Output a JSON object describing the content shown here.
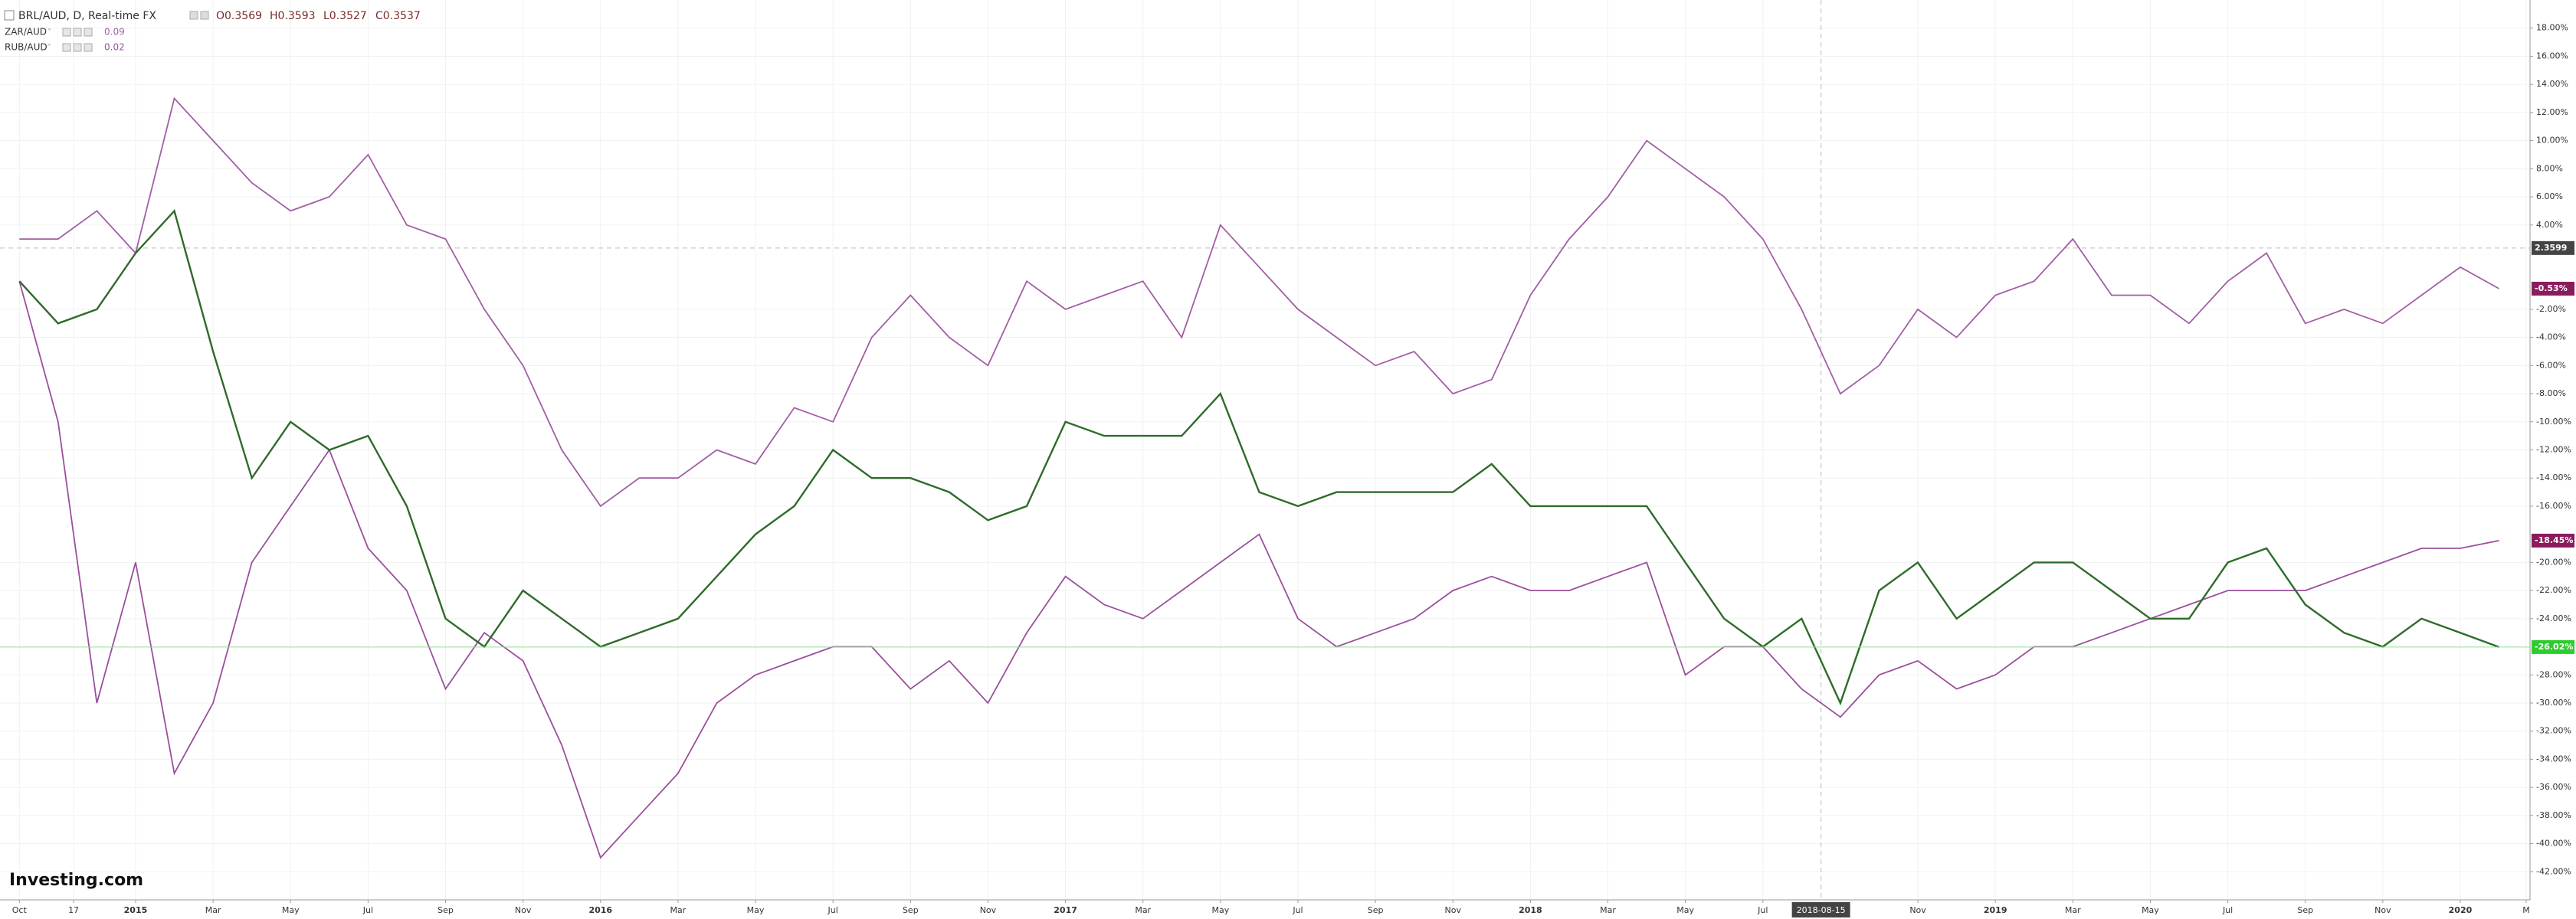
{
  "chart_data": {
    "type": "line",
    "header": {
      "symbol": "BRL/AUD, D, Real-time FX",
      "open": "O0.3569",
      "high": "H0.3593",
      "low": "L0.3527",
      "close": "C0.3537"
    },
    "logo": "Investing.com",
    "x": [
      -3,
      -2,
      -1,
      0,
      1,
      2,
      3,
      4,
      5,
      6,
      7,
      8,
      9,
      10,
      11,
      12,
      13,
      14,
      15,
      16,
      17,
      18,
      19,
      20,
      21,
      22,
      23,
      24,
      25,
      26,
      27,
      28,
      29,
      30,
      31,
      32,
      33,
      34,
      35,
      36,
      37,
      38,
      39,
      40,
      41,
      42,
      43,
      44,
      45,
      46,
      47,
      48,
      49,
      50,
      51,
      52,
      53,
      54,
      55,
      56,
      57,
      58,
      59,
      60,
      61
    ],
    "xlim": [
      -3.5,
      61.8
    ],
    "xticks": [
      {
        "value": -3,
        "label": "Oct"
      },
      {
        "value": -1.6,
        "label": "17"
      },
      {
        "value": 0,
        "label": "2015"
      },
      {
        "value": 2,
        "label": "Mar"
      },
      {
        "value": 4,
        "label": "May"
      },
      {
        "value": 6,
        "label": "Jul"
      },
      {
        "value": 8,
        "label": "Sep"
      },
      {
        "value": 10,
        "label": "Nov"
      },
      {
        "value": 12,
        "label": "2016"
      },
      {
        "value": 14,
        "label": "Mar"
      },
      {
        "value": 16,
        "label": "May"
      },
      {
        "value": 18,
        "label": "Jul"
      },
      {
        "value": 20,
        "label": "Sep"
      },
      {
        "value": 22,
        "label": "Nov"
      },
      {
        "value": 24,
        "label": "2017"
      },
      {
        "value": 26,
        "label": "Mar"
      },
      {
        "value": 28,
        "label": "May"
      },
      {
        "value": 30,
        "label": "Jul"
      },
      {
        "value": 32,
        "label": "Sep"
      },
      {
        "value": 34,
        "label": "Nov"
      },
      {
        "value": 36,
        "label": "2018"
      },
      {
        "value": 38,
        "label": "Mar"
      },
      {
        "value": 40,
        "label": "May"
      },
      {
        "value": 42,
        "label": "Jul"
      },
      {
        "value": 46,
        "label": "Nov"
      },
      {
        "value": 48,
        "label": "2019"
      },
      {
        "value": 50,
        "label": "Mar"
      },
      {
        "value": 52,
        "label": "May"
      },
      {
        "value": 54,
        "label": "Jul"
      },
      {
        "value": 56,
        "label": "Sep"
      },
      {
        "value": 58,
        "label": "Nov"
      },
      {
        "value": 60,
        "label": "2020"
      },
      {
        "value": 61.7,
        "label": "M"
      }
    ],
    "ylim": [
      -44,
      20
    ],
    "yticks": [
      {
        "value": 18,
        "label": "18.00%"
      },
      {
        "value": 16,
        "label": "16.00%"
      },
      {
        "value": 14,
        "label": "14.00%"
      },
      {
        "value": 12,
        "label": "12.00%"
      },
      {
        "value": 10,
        "label": "10.00%"
      },
      {
        "value": 8,
        "label": "8.00%"
      },
      {
        "value": 6,
        "label": "6.00%"
      },
      {
        "value": 4,
        "label": "4.00%"
      },
      {
        "value": -2,
        "label": "-2.00%"
      },
      {
        "value": -4,
        "label": "-4.00%"
      },
      {
        "value": -6,
        "label": "-6.00%"
      },
      {
        "value": -8,
        "label": "-8.00%"
      },
      {
        "value": -10,
        "label": "-10.00%"
      },
      {
        "value": -12,
        "label": "-12.00%"
      },
      {
        "value": -14,
        "label": "-14.00%"
      },
      {
        "value": -16,
        "label": "-16.00%"
      },
      {
        "value": -20,
        "label": "-20.00%"
      },
      {
        "value": -22,
        "label": "-22.00%"
      },
      {
        "value": -24,
        "label": "-24.00%"
      },
      {
        "value": -28,
        "label": "-28.00%"
      },
      {
        "value": -30,
        "label": "-30.00%"
      },
      {
        "value": -32,
        "label": "-32.00%"
      },
      {
        "value": -34,
        "label": "-34.00%"
      },
      {
        "value": -36,
        "label": "-36.00%"
      },
      {
        "value": -38,
        "label": "-38.00%"
      },
      {
        "value": -40,
        "label": "-40.00%"
      },
      {
        "value": -42,
        "label": "-42.00%"
      }
    ],
    "grid": true,
    "crosshair": {
      "x": 43.5,
      "x_label": "2018-08-15",
      "y": 2.36,
      "y_label": "2.3599"
    },
    "series": [
      {
        "name": "ZAR/AUD",
        "legend_value": "0.09",
        "color": "#a25ea3",
        "badge_color": "#8a1c5e",
        "last_label": "-0.53%",
        "values": [
          3,
          3,
          5,
          2,
          13,
          10,
          7,
          5,
          6,
          9,
          4,
          3,
          -2,
          -6,
          -12,
          -16,
          -14,
          -14,
          -12,
          -13,
          -9,
          -10,
          -4,
          -1,
          -4,
          -6,
          0,
          -2,
          -1,
          0,
          -4,
          4,
          1,
          -2,
          -4,
          -6,
          -5,
          -8,
          -7,
          -1,
          3,
          6,
          10,
          8,
          6,
          3,
          -2,
          -8,
          -6,
          -2,
          -4,
          -1,
          0,
          3,
          -1,
          -1,
          -3,
          0,
          2,
          -3,
          -2,
          -3,
          -1,
          1,
          -0.53
        ]
      },
      {
        "name": "RUB/AUD",
        "legend_value": "0.02",
        "color": "#9b4f9c",
        "badge_color": "#8a1c5e",
        "last_label": "-18.45%",
        "values": [
          0,
          -10,
          -30,
          -20,
          -35,
          -30,
          -20,
          -16,
          -12,
          -19,
          -22,
          -29,
          -25,
          -27,
          -33,
          -41,
          -38,
          -35,
          -30,
          -28,
          -27,
          -26,
          -26,
          -29,
          -27,
          -30,
          -25,
          -21,
          -23,
          -24,
          -22,
          -20,
          -18,
          -24,
          -26,
          -25,
          -24,
          -22,
          -21,
          -22,
          -22,
          -21,
          -20,
          -28,
          -26,
          -26,
          -29,
          -31,
          -28,
          -27,
          -29,
          -28,
          -26,
          -26,
          -25,
          -24,
          -23,
          -22,
          -22,
          -22,
          -21,
          -20,
          -19,
          -19,
          -18.45
        ]
      },
      {
        "name": "BRL/AUD",
        "color": "#2f6b2a",
        "badge_color": "#2ecc2e",
        "last_label": "-26.02%",
        "values": [
          0,
          -3,
          -2,
          2,
          5,
          -5,
          -14,
          -10,
          -12,
          -11,
          -16,
          -24,
          -26,
          -22,
          -24,
          -26,
          -25,
          -24,
          -21,
          -18,
          -16,
          -12,
          -14,
          -14,
          -15,
          -17,
          -16,
          -10,
          -11,
          -11,
          -11,
          -8,
          -15,
          -16,
          -15,
          -15,
          -15,
          -15,
          -13,
          -16,
          -16,
          -16,
          -16,
          -20,
          -24,
          -26,
          -24,
          -30,
          -22,
          -20,
          -24,
          -22,
          -20,
          -20,
          -22,
          -24,
          -24,
          -20,
          -19,
          -23,
          -25,
          -26,
          -24,
          -25,
          -26.02
        ]
      }
    ]
  }
}
